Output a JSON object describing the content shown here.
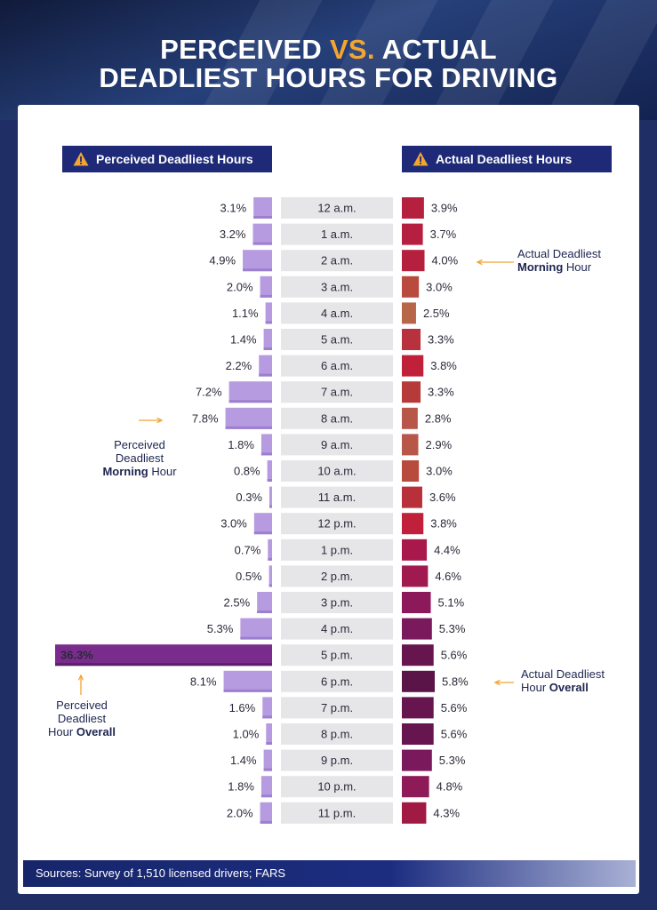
{
  "title": {
    "line1_a": "PERCEIVED ",
    "line1_vs": "VS.",
    "line1_b": " ACTUAL",
    "line2": "DEADLIEST HOURS FOR DRIVING"
  },
  "headers": {
    "left": "Perceived Deadliest Hours",
    "right": "Actual Deadliest Hours"
  },
  "annotations": {
    "perceived_morning": {
      "line1": "Perceived",
      "line2": "Deadliest",
      "bold": "Morning",
      "rest": " Hour"
    },
    "perceived_overall": {
      "line1": "Perceived",
      "line2": "Deadliest",
      "pre": "Hour ",
      "bold": "Overall"
    },
    "actual_morning": {
      "line1": "Actual Deadliest",
      "bold": "Morning",
      "rest": " Hour"
    },
    "actual_overall": {
      "line1": "Actual Deadliest",
      "pre": "Hour ",
      "bold": "Overall"
    }
  },
  "footer": "Sources: Survey of 1,510 licensed drivers; FARS",
  "colors": {
    "perceived_bar": "#b79be0",
    "perceived_max": "#7a2c8c",
    "hour_box": "#e6e6e9",
    "header": "#1e2a78",
    "accent": "#f2a531"
  },
  "chart_data": {
    "type": "bar",
    "title": "Perceived vs. Actual Deadliest Hours for Driving",
    "categories": [
      "12 a.m.",
      "1 a.m.",
      "2 a.m.",
      "3 a.m.",
      "4 a.m.",
      "5 a.m.",
      "6 a.m.",
      "7 a.m.",
      "8 a.m.",
      "9 a.m.",
      "10 a.m.",
      "11 a.m.",
      "12 p.m.",
      "1 p.m.",
      "2 p.m.",
      "3 p.m.",
      "4 p.m.",
      "5 p.m.",
      "6 p.m.",
      "7 p.m.",
      "8 p.m.",
      "9 p.m.",
      "10 p.m.",
      "11 p.m."
    ],
    "series": [
      {
        "name": "Perceived Deadliest Hours",
        "values": [
          3.1,
          3.2,
          4.9,
          2.0,
          1.1,
          1.4,
          2.2,
          7.2,
          7.8,
          1.8,
          0.8,
          0.3,
          3.0,
          0.7,
          0.5,
          2.5,
          5.3,
          36.3,
          8.1,
          1.6,
          1.0,
          1.4,
          1.8,
          2.0
        ],
        "labels": [
          "3.1%",
          "3.2%",
          "4.9%",
          "2.0%",
          "1.1%",
          "1.4%",
          "2.2%",
          "7.2%",
          "7.8%",
          "1.8%",
          "0.8%",
          "0.3%",
          "3.0%",
          "0.7%",
          "0.5%",
          "2.5%",
          "5.3%",
          "36.3%",
          "8.1%",
          "1.6%",
          "1.0%",
          "1.4%",
          "1.8%",
          "2.0%"
        ]
      },
      {
        "name": "Actual Deadliest Hours",
        "values": [
          3.9,
          3.7,
          4.0,
          3.0,
          2.5,
          3.3,
          3.8,
          3.3,
          2.8,
          2.9,
          3.0,
          3.6,
          3.8,
          4.4,
          4.6,
          5.1,
          5.3,
          5.6,
          5.8,
          5.6,
          5.6,
          5.3,
          4.8,
          4.3
        ],
        "labels": [
          "3.9%",
          "3.7%",
          "4.0%",
          "3.0%",
          "2.5%",
          "3.3%",
          "3.8%",
          "3.3%",
          "2.8%",
          "2.9%",
          "3.0%",
          "3.6%",
          "3.8%",
          "4.4%",
          "4.6%",
          "5.1%",
          "5.3%",
          "5.6%",
          "5.8%",
          "5.6%",
          "5.6%",
          "5.3%",
          "4.8%",
          "4.3%"
        ],
        "colors": [
          "#b5203e",
          "#b52040",
          "#b5203e",
          "#b84a3e",
          "#b8664a",
          "#b8323e",
          "#c0203a",
          "#b63a3a",
          "#b8564a",
          "#b8564a",
          "#b84a3e",
          "#b8303a",
          "#c0203a",
          "#a8184a",
          "#a01a50",
          "#8c1a5a",
          "#7a1a5c",
          "#66154e",
          "#5a1448",
          "#66154e",
          "#66154e",
          "#7a1a5c",
          "#8e1a58",
          "#a01a44"
        ]
      }
    ],
    "unit": "%",
    "xlim_perceived": [
      0,
      36.3
    ],
    "xlim_actual": [
      0,
      5.8
    ]
  }
}
